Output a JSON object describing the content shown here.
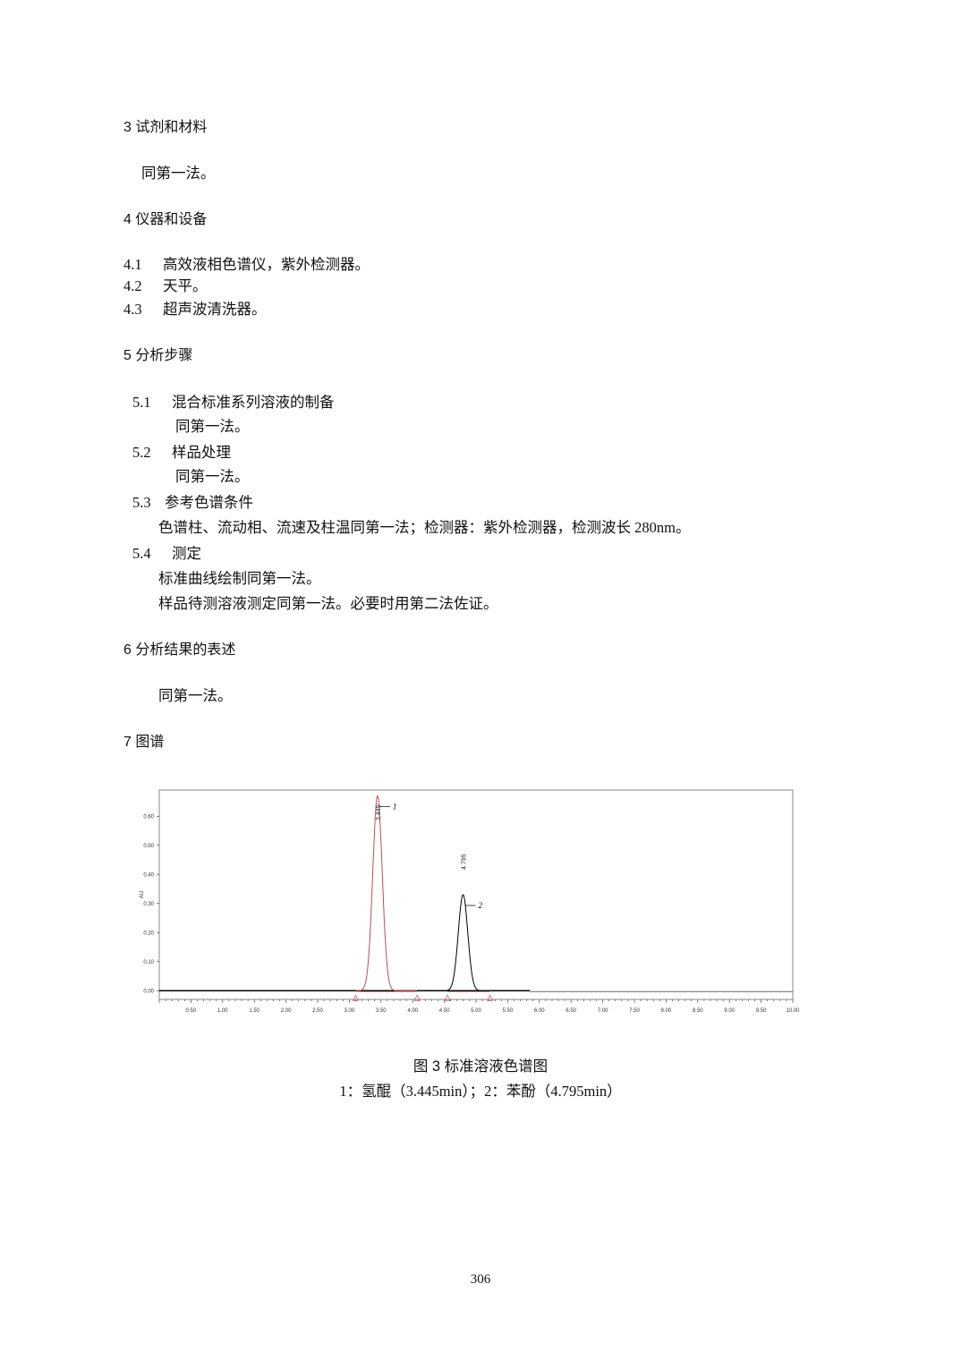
{
  "sections": {
    "s3": {
      "heading": "3  试剂和材料",
      "body": "同第一法。"
    },
    "s4": {
      "heading": "4  仪器和设备",
      "items": [
        {
          "num": "4.1",
          "text": "高效液相色谱仪，紫外检测器。"
        },
        {
          "num": "4.2",
          "text": "天平。"
        },
        {
          "num": "4.3",
          "text": "超声波清洗器。"
        }
      ]
    },
    "s5": {
      "heading": "5    分析步骤",
      "items": [
        {
          "num": "5.1",
          "title": "混合标准系列溶液的制备",
          "body": [
            "同第一法。"
          ]
        },
        {
          "num": "5.2",
          "title": "样品处理",
          "body": [
            "同第一法。"
          ]
        },
        {
          "num": "5.3",
          "title": "参考色谱条件",
          "body": [
            "色谱柱、流动相、流速及柱温同第一法；检测器：紫外检测器，检测波长 280nm。"
          ]
        },
        {
          "num": "5.4",
          "title": "测定",
          "body": [
            "标准曲线绘制同第一法。",
            "样品待测溶液测定同第一法。必要时用第二法佐证。"
          ]
        }
      ]
    },
    "s6": {
      "heading": "6    分析结果的表述",
      "body": "同第一法。"
    },
    "s7": {
      "heading": "7 图谱"
    }
  },
  "figure": {
    "caption": "图 3    标准溶液色谱图",
    "legend": "1：氢醌（3.445min）；2：苯酚（4.795min）"
  },
  "chart_data": {
    "type": "line",
    "ylabel": "AU",
    "xlabel": "",
    "xlim": [
      0,
      10
    ],
    "ylim": [
      -0.03,
      0.69
    ],
    "x_ticks": [
      "0.50",
      "1.00",
      "1.50",
      "2.00",
      "2.50",
      "3.00",
      "3.50",
      "4.00",
      "4.50",
      "5.00",
      "5.50",
      "6.00",
      "6.50",
      "7.00",
      "7.50",
      "8.00",
      "8.50",
      "9.00",
      "9.50",
      "10.00"
    ],
    "y_ticks": [
      "0.00",
      "0.10",
      "0.20",
      "0.30",
      "0.40",
      "0.50",
      "0.60"
    ],
    "peaks": [
      {
        "id": "1",
        "retention_time": "3.445",
        "height": 0.67,
        "color": "#c0504d",
        "start": 3.1,
        "end": 4.07
      },
      {
        "id": "2",
        "retention_time": "4.795",
        "height": 0.33,
        "color": "#000000",
        "start": 4.55,
        "end": 5.22
      }
    ],
    "grid": false
  },
  "page_number": "306"
}
